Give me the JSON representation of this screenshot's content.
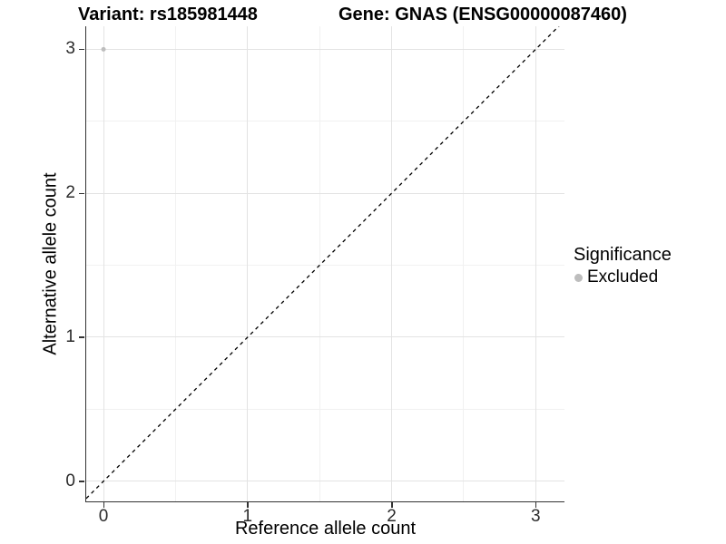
{
  "titles": {
    "variant": "Variant: rs185981448",
    "gene": "Gene: GNAS (ENSG00000087460)"
  },
  "x_axis": {
    "label": "Reference allele count",
    "tick_labels": [
      "0",
      "1",
      "2",
      "3"
    ]
  },
  "y_axis": {
    "label": "Alternative allele count",
    "tick_labels": [
      "0",
      "1",
      "2",
      "3"
    ]
  },
  "legend": {
    "title": "Significance",
    "items": [
      {
        "label": "Excluded",
        "marker": "dot-icon",
        "color": "#bdbdbd"
      }
    ]
  },
  "chart_data": {
    "type": "scatter",
    "title": "Variant: rs185981448 | Gene: GNAS (ENSG00000087460)",
    "xlabel": "Reference allele count",
    "ylabel": "Alternative allele count",
    "xlim": [
      -0.12,
      3.2
    ],
    "ylim": [
      -0.14,
      3.16
    ],
    "x_ticks": [
      0,
      1,
      2,
      3
    ],
    "y_ticks": [
      0,
      1,
      2,
      3
    ],
    "x_minor_ticks": [
      0.5,
      1.5,
      2.5
    ],
    "y_minor_ticks": [
      0.5,
      1.5,
      2.5
    ],
    "grid": "major+minor",
    "legend_position": "right",
    "series": [
      {
        "name": "Excluded",
        "color": "#bdbdbd",
        "point_radius": 2.5,
        "points": [
          {
            "x": 0,
            "y": 3
          }
        ]
      }
    ],
    "reference_line": {
      "type": "identity",
      "slope": 1,
      "intercept": 0,
      "style": "dashed",
      "color": "#000000"
    }
  },
  "colors": {
    "background": "#ffffff",
    "grid_major": "#e3e3e3",
    "grid_minor": "#f1f1f1",
    "axis_line": "#333333",
    "tick": "#333333",
    "tick_text": "#2b2b2b",
    "text": "#000000",
    "point": "#bdbdbd"
  }
}
